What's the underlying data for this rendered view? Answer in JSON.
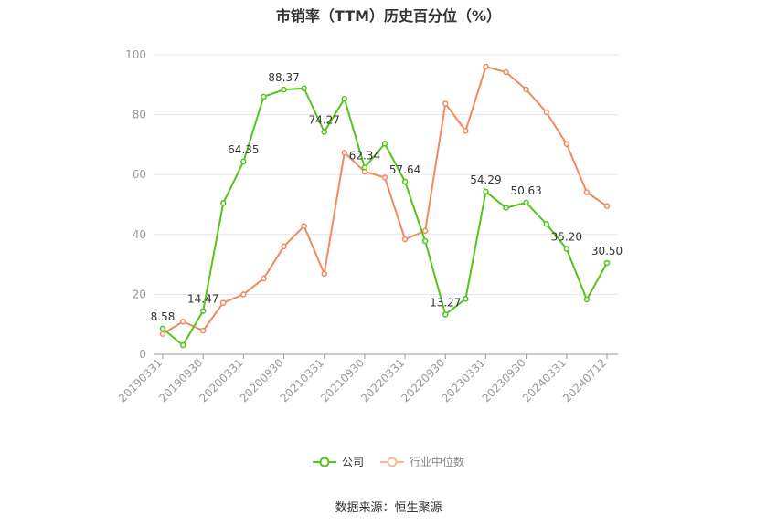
{
  "title": "市销率（TTM）历史百分位（%）",
  "source": "数据来源：恒生聚源",
  "colors": {
    "company": "#52c41a",
    "industry": "#f08a5d",
    "grid": "#e5e5e5",
    "axis_text": "#999999",
    "label_text": "#333333"
  },
  "chart_data": {
    "type": "line",
    "title": "市销率（TTM）历史百分位（%）",
    "xlabel": "",
    "ylabel": "",
    "ylim": [
      0,
      100
    ],
    "yticks": [
      0,
      20,
      40,
      60,
      80,
      100
    ],
    "grid": true,
    "legend_position": "bottom",
    "x_tick_labels": [
      "20190331",
      "20190930",
      "20200331",
      "20200930",
      "20210331",
      "20210930",
      "20220331",
      "20220930",
      "20230331",
      "20230930",
      "20240331",
      "20240712"
    ],
    "x_tick_indices": [
      0,
      2,
      4,
      6,
      8,
      10,
      12,
      14,
      16,
      18,
      20,
      22
    ],
    "series": [
      {
        "name": "公司",
        "values": [
          8.58,
          3.0,
          14.47,
          50.5,
          64.35,
          86.0,
          88.37,
          88.8,
          74.27,
          85.3,
          62.34,
          70.3,
          57.64,
          37.8,
          13.27,
          18.5,
          54.29,
          48.9,
          50.63,
          43.5,
          35.2,
          18.3,
          30.5
        ],
        "labels": [
          "8.58",
          "",
          "14.47",
          "",
          "64.35",
          "",
          "88.37",
          "",
          "74.27",
          "",
          "62.34",
          "",
          "57.64",
          "",
          "13.27",
          "",
          "54.29",
          "",
          "50.63",
          "",
          "35.20",
          "",
          "30.50"
        ]
      },
      {
        "name": "行业中位数",
        "values": [
          6.8,
          10.9,
          7.9,
          17.2,
          20.0,
          25.3,
          36.0,
          42.8,
          26.9,
          67.3,
          61.0,
          59.0,
          38.4,
          41.2,
          83.7,
          74.6,
          96.0,
          94.2,
          88.4,
          80.8,
          70.2,
          54.1,
          49.5
        ]
      }
    ]
  }
}
